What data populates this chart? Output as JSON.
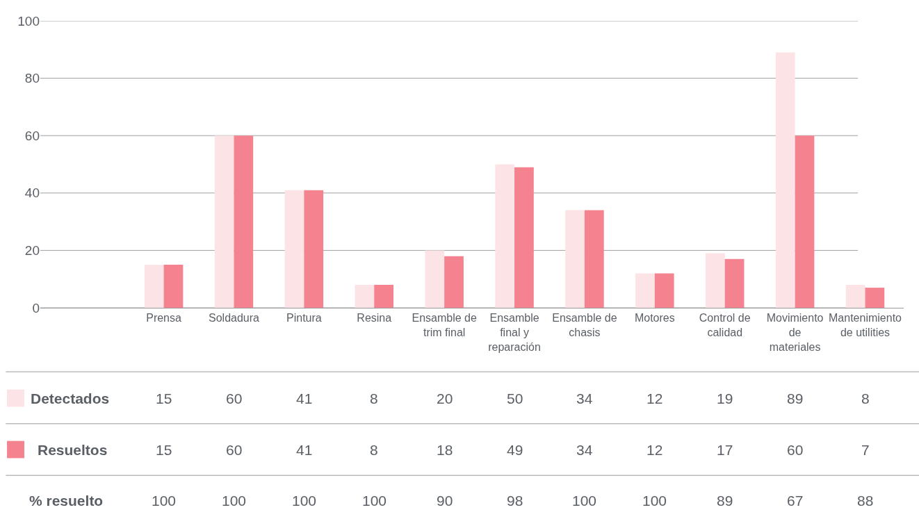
{
  "chart_data": {
    "type": "bar",
    "categories": [
      "Prensa",
      "Soldadura",
      "Pintura",
      "Resina",
      "Ensamble de trim final",
      "Ensamble final y reparación",
      "Ensamble de chasis",
      "Motores",
      "Control de calidad",
      "Movimiento de materiales",
      "Mantenimiento de utilities"
    ],
    "series": [
      {
        "name": "Detectados",
        "color": "#fce4e6",
        "values": [
          15,
          60,
          41,
          8,
          20,
          50,
          34,
          12,
          19,
          89,
          8
        ]
      },
      {
        "name": "Resueltos",
        "color": "#f4828f",
        "values": [
          15,
          60,
          41,
          8,
          18,
          49,
          34,
          12,
          17,
          60,
          7
        ]
      }
    ],
    "annotations": [
      "% resuelto",
      "100",
      "100",
      "100",
      "100",
      "90",
      "98",
      "100",
      "100",
      "89",
      "67",
      "88"
    ],
    "legend": "bottom left",
    "ylim": [
      0,
      100
    ],
    "yticks": [
      0,
      20,
      40,
      60,
      80,
      100
    ],
    "grid": "y",
    "data_labels": true
  }
}
